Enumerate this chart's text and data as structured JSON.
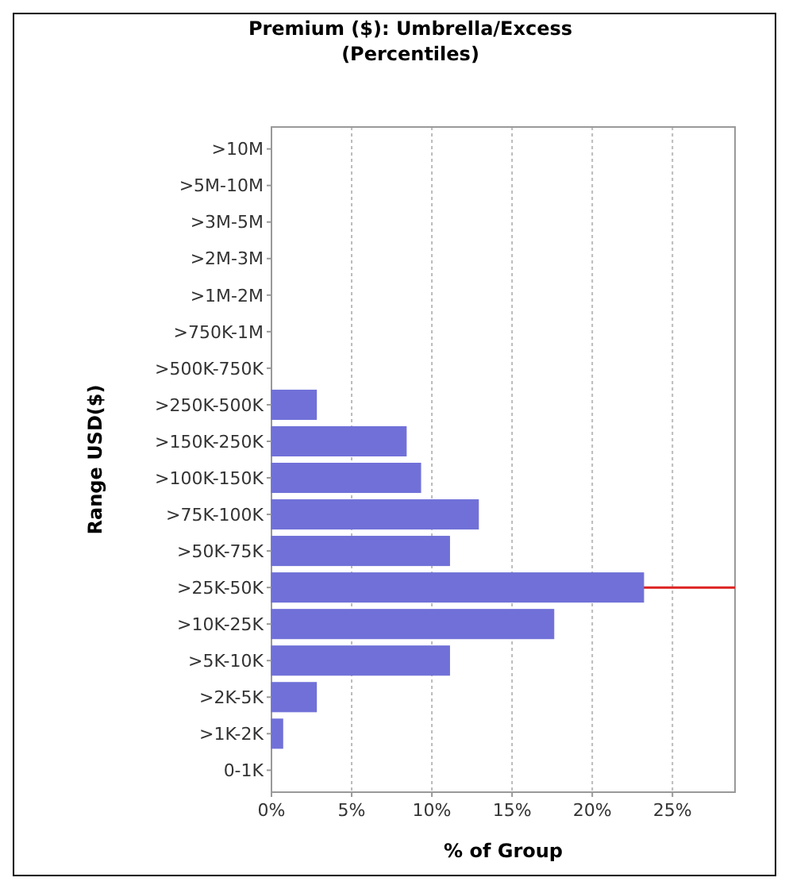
{
  "chart_data": {
    "type": "bar",
    "orientation": "horizontal",
    "title": "Premium ($): Umbrella/Excess\n(Percentiles)",
    "xlabel": "% of Group",
    "ylabel": "Range USD($)",
    "categories": [
      ">10M",
      ">5M-10M",
      ">3M-5M",
      ">2M-3M",
      ">1M-2M",
      ">750K-1M",
      ">500K-750K",
      ">250K-500K",
      ">150K-250K",
      ">100K-150K",
      ">75K-100K",
      ">50K-75K",
      ">25K-50K",
      ">10K-25K",
      ">5K-10K",
      ">2K-5K",
      ">1K-2K",
      "0-1K"
    ],
    "values": [
      0,
      0,
      0,
      0,
      0,
      0,
      0,
      2.8,
      8.4,
      9.3,
      12.9,
      11.1,
      23.2,
      17.6,
      11.1,
      2.8,
      0.7,
      0
    ],
    "color": "#7070d8",
    "xlim": [
      0,
      28.9
    ],
    "xticks": [
      {
        "value": 0,
        "label": "0%"
      },
      {
        "value": 5,
        "label": "5%"
      },
      {
        "value": 10,
        "label": "10%"
      },
      {
        "value": 15,
        "label": "15%"
      },
      {
        "value": 20,
        "label": "20%"
      },
      {
        "value": 25,
        "label": "25%"
      }
    ],
    "grid": "x",
    "ref_lines": [
      {
        "axis": "y",
        "value": ">25K-50K",
        "color": "#dd2222"
      }
    ]
  }
}
